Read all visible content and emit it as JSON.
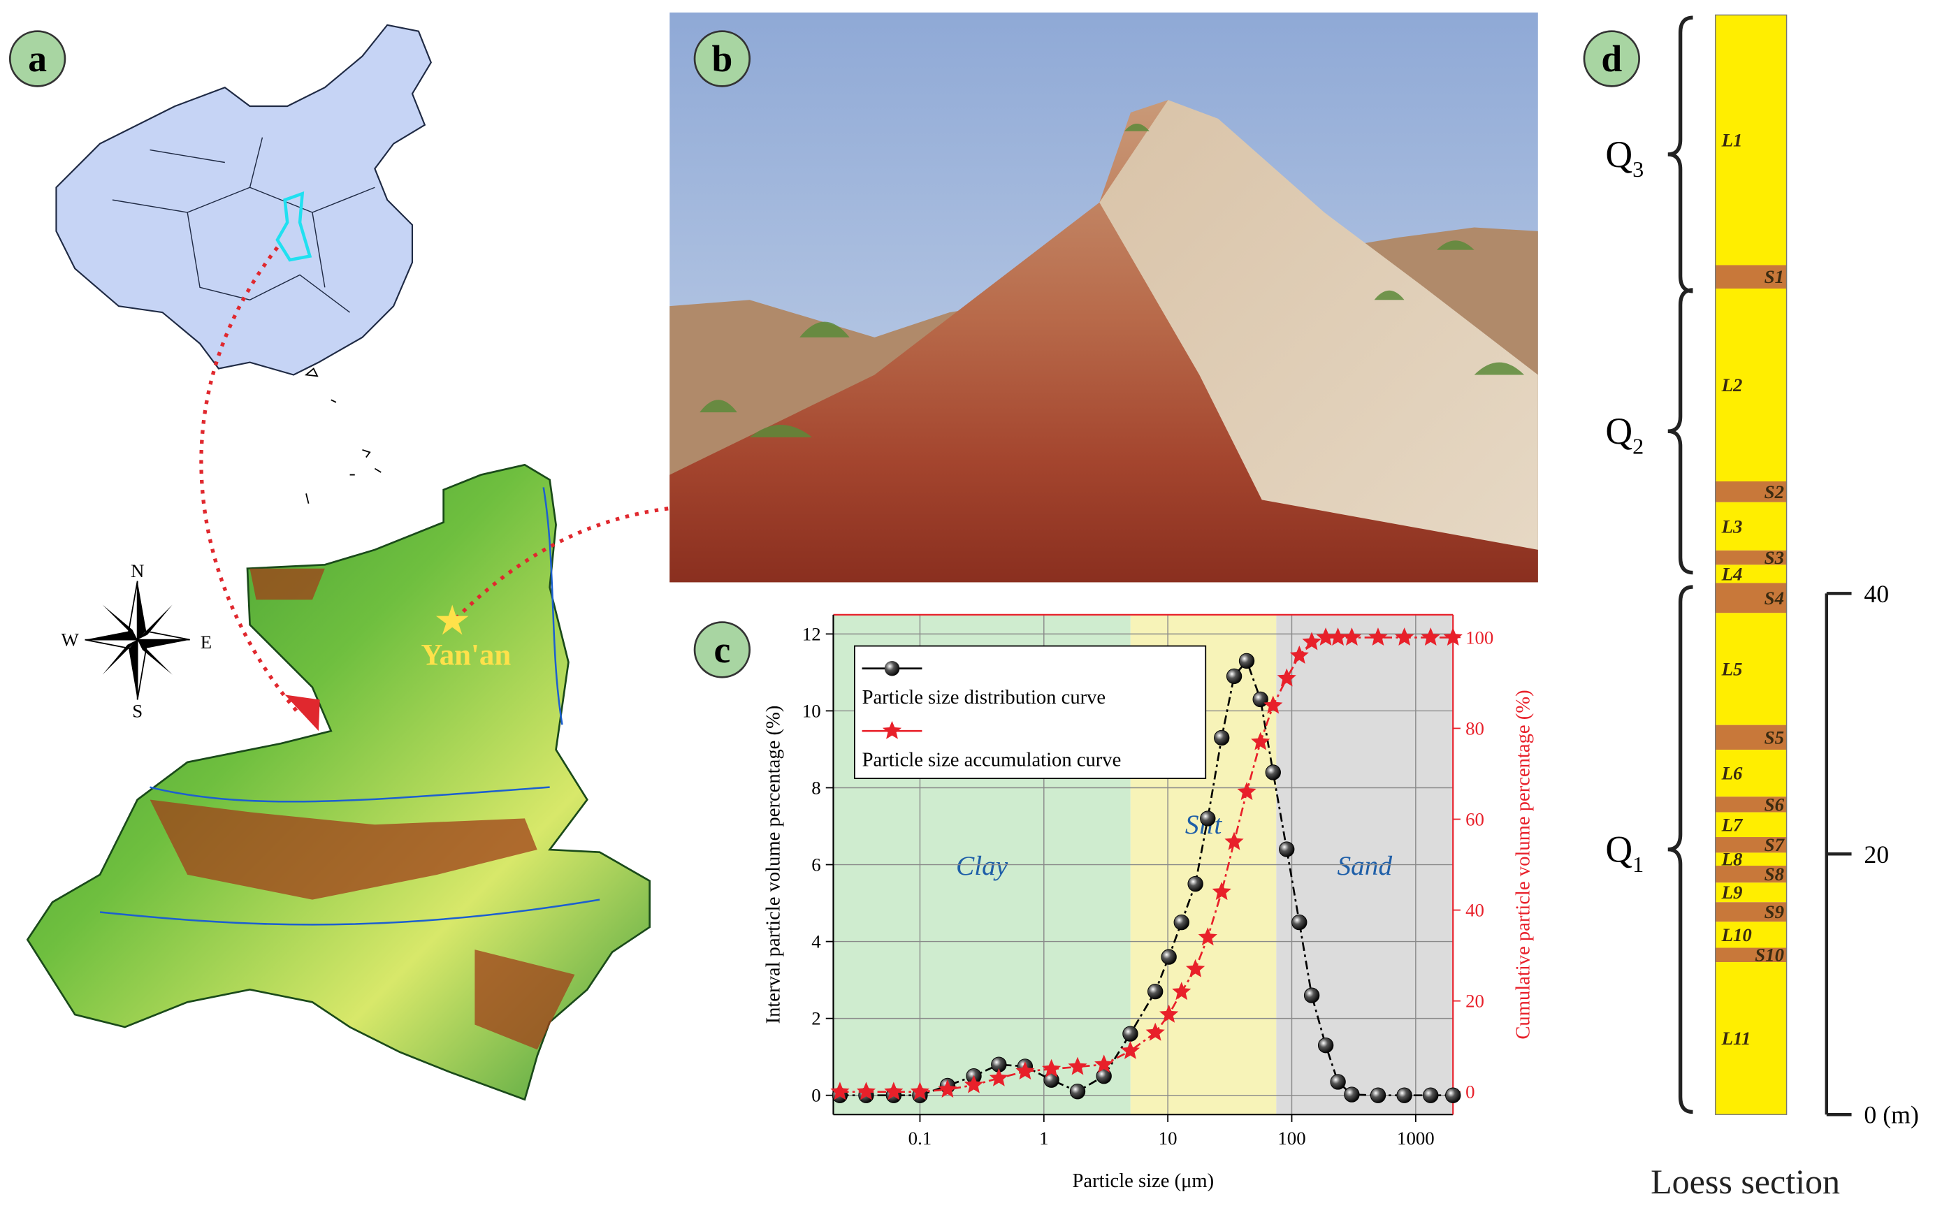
{
  "panels": {
    "a": "a",
    "b": "b",
    "c": "c",
    "d": "d"
  },
  "map": {
    "compass": {
      "N": "N",
      "S": "S",
      "W": "W",
      "E": "E"
    },
    "city": "Yan'an"
  },
  "chart_data": {
    "type": "line",
    "x_label": "Particle size (μm)",
    "y_label": "Interval particle volume percentage (%)",
    "y2_label": "Cumulative particle volume percentage (%)",
    "log_x": true,
    "grid": true,
    "xlim": [
      0.02,
      2000
    ],
    "xticks": [
      0.1,
      1,
      10,
      100,
      1000
    ],
    "ylim": [
      -0.5,
      12.5
    ],
    "yticks": [
      0,
      2,
      4,
      6,
      8,
      10,
      12
    ],
    "y2lim": [
      -5,
      105
    ],
    "y2ticks": [
      0,
      20,
      40,
      60,
      80,
      100
    ],
    "regions": [
      {
        "name": "Clay",
        "range": [
          0.02,
          5
        ],
        "color": "#cfeccf"
      },
      {
        "name": "Silt",
        "range": [
          5,
          75
        ],
        "color": "#f7f3b8"
      },
      {
        "name": "Sand",
        "range": [
          75,
          2000
        ],
        "color": "#dcdcdc"
      }
    ],
    "x": [
      0.0226,
      0.0368,
      0.0614,
      0.1,
      0.167,
      0.272,
      0.433,
      0.705,
      1.15,
      1.87,
      3.05,
      4.98,
      7.92,
      10.2,
      12.9,
      16.7,
      21.0,
      27.2,
      34.3,
      43.3,
      55.9,
      70.7,
      91.0,
      115,
      145,
      188,
      236,
      305,
      497,
      810,
      1320,
      2000
    ],
    "series": [
      {
        "name": "Particle size distribution curve",
        "color": "#000000",
        "marker": "circle",
        "values": [
          0,
          0,
          0,
          0,
          0.25,
          0.5,
          0.8,
          0.75,
          0.4,
          0.1,
          0.5,
          1.6,
          2.7,
          3.6,
          4.5,
          5.5,
          7.2,
          9.3,
          10.9,
          11.3,
          10.3,
          8.4,
          6.4,
          4.5,
          2.6,
          1.3,
          0.35,
          0.02,
          0,
          0,
          0,
          0
        ]
      },
      {
        "name": "Particle size accumulation curve",
        "color": "#e8202a",
        "marker": "star",
        "axis": "y2",
        "values": [
          0,
          0,
          0,
          0,
          0.5,
          1.5,
          3,
          4.5,
          5,
          5.5,
          6,
          9,
          13,
          17,
          22,
          27,
          34,
          44,
          55,
          66,
          77,
          85,
          91,
          96,
          99,
          100,
          100,
          100,
          100,
          100,
          100,
          100
        ]
      }
    ]
  },
  "loess_section": {
    "title": "Loess section",
    "ylim": [
      0,
      84.4
    ],
    "yticks": [
      {
        "value": 0,
        "label": "0 (m)"
      },
      20,
      40
    ],
    "layers": [
      {
        "name": "L1",
        "range": [
          65.2,
          84.4
        ],
        "color": "#ffee00"
      },
      {
        "name": "S1",
        "range": [
          63.4,
          65.2
        ],
        "color": "#c8783a"
      },
      {
        "name": "L2",
        "range": [
          48.6,
          63.4
        ],
        "color": "#ffee00"
      },
      {
        "name": "S2",
        "range": [
          47.0,
          48.6
        ],
        "color": "#c8783a"
      },
      {
        "name": "L3",
        "range": [
          43.3,
          47.0
        ],
        "color": "#ffee00"
      },
      {
        "name": "S3",
        "range": [
          42.2,
          43.3
        ],
        "color": "#c8783a"
      },
      {
        "name": "L4",
        "range": [
          40.8,
          42.2
        ],
        "color": "#ffee00"
      },
      {
        "name": "S4",
        "range": [
          38.5,
          40.8
        ],
        "color": "#c8783a"
      },
      {
        "name": "L5",
        "range": [
          29.9,
          38.5
        ],
        "color": "#ffee00"
      },
      {
        "name": "S5",
        "range": [
          28.0,
          29.9
        ],
        "color": "#c8783a"
      },
      {
        "name": "L6",
        "range": [
          24.4,
          28.0
        ],
        "color": "#ffee00"
      },
      {
        "name": "S6",
        "range": [
          23.2,
          24.4
        ],
        "color": "#c8783a"
      },
      {
        "name": "L7",
        "range": [
          21.3,
          23.2
        ],
        "color": "#ffee00"
      },
      {
        "name": "S7",
        "range": [
          20.1,
          21.3
        ],
        "color": "#c8783a"
      },
      {
        "name": "L8",
        "range": [
          19.1,
          20.1
        ],
        "color": "#ffee00"
      },
      {
        "name": "S8",
        "range": [
          17.8,
          19.1
        ],
        "color": "#c8783a"
      },
      {
        "name": "L9",
        "range": [
          16.3,
          17.8
        ],
        "color": "#ffee00"
      },
      {
        "name": "S9",
        "range": [
          14.8,
          16.3
        ],
        "color": "#c8783a"
      },
      {
        "name": "L10",
        "range": [
          12.8,
          14.8
        ],
        "color": "#ffee00"
      },
      {
        "name": "S10",
        "range": [
          11.7,
          12.8
        ],
        "color": "#c8783a"
      },
      {
        "name": "L11",
        "range": [
          0,
          11.7
        ],
        "color": "#ffee00"
      }
    ],
    "periods": [
      {
        "symbol": "Q",
        "subscript": "3",
        "range": [
          63.2,
          84.2
        ]
      },
      {
        "symbol": "Q",
        "subscript": "2",
        "range": [
          41.6,
          63.3
        ]
      },
      {
        "symbol": "Q",
        "subscript": "1",
        "range": [
          0.2,
          40.5
        ]
      }
    ]
  }
}
